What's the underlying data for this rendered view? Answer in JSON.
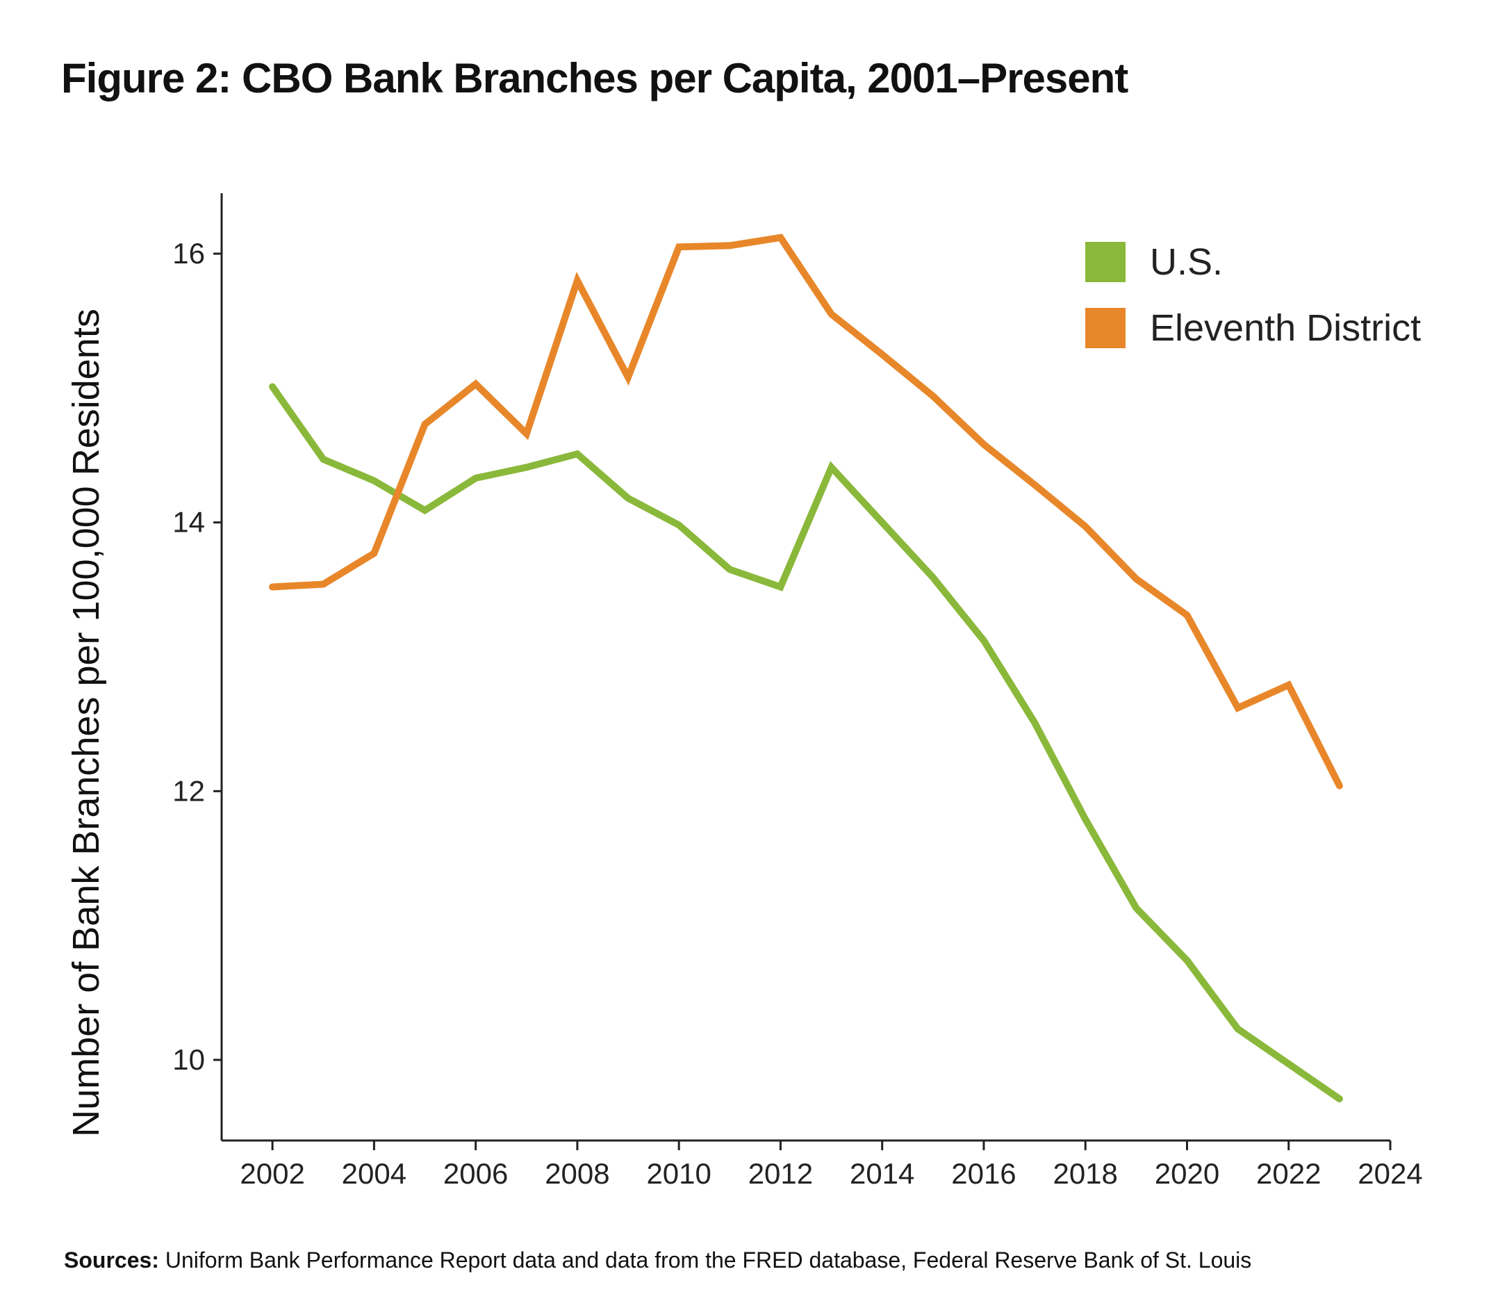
{
  "figure": {
    "title": "Figure 2: CBO Bank Branches per Capita, 2001–Present",
    "sources_label": "Sources:",
    "sources_text": "Uniform Bank Performance Report data and data from the FRED database, Federal Reserve Bank of St. Louis"
  },
  "chart_data": {
    "type": "line",
    "title": "Figure 2: CBO Bank Branches per Capita, 2001–Present",
    "xlabel": "",
    "ylabel": "Number of Bank Branches per 100,000 Residents",
    "xlim": [
      2001,
      2024
    ],
    "ylim": [
      9.4,
      16.45
    ],
    "x_ticks": [
      2002,
      2004,
      2006,
      2008,
      2010,
      2012,
      2014,
      2016,
      2018,
      2020,
      2022,
      2024
    ],
    "y_ticks": [
      10,
      12,
      14,
      16
    ],
    "grid": false,
    "legend_position": "top-right",
    "x": [
      2002,
      2003,
      2004,
      2005,
      2006,
      2007,
      2008,
      2009,
      2010,
      2011,
      2012,
      2013,
      2014,
      2015,
      2016,
      2017,
      2018,
      2019,
      2020,
      2021,
      2022,
      2023
    ],
    "series": [
      {
        "name": "U.S.",
        "color": "#8ab83a",
        "values": [
          15.01,
          14.47,
          14.31,
          14.09,
          14.33,
          14.41,
          14.51,
          14.18,
          13.98,
          13.65,
          13.52,
          14.41,
          14.0,
          13.59,
          13.12,
          12.51,
          11.79,
          11.13,
          10.74,
          10.23,
          9.97,
          9.71
        ]
      },
      {
        "name": "Eleventh District",
        "color": "#e8872a",
        "values": [
          13.52,
          13.54,
          13.77,
          14.73,
          15.03,
          14.66,
          15.8,
          15.08,
          16.05,
          16.06,
          16.12,
          15.55,
          15.25,
          14.94,
          14.58,
          14.28,
          13.97,
          13.58,
          13.31,
          12.62,
          12.79,
          12.04
        ]
      }
    ]
  }
}
